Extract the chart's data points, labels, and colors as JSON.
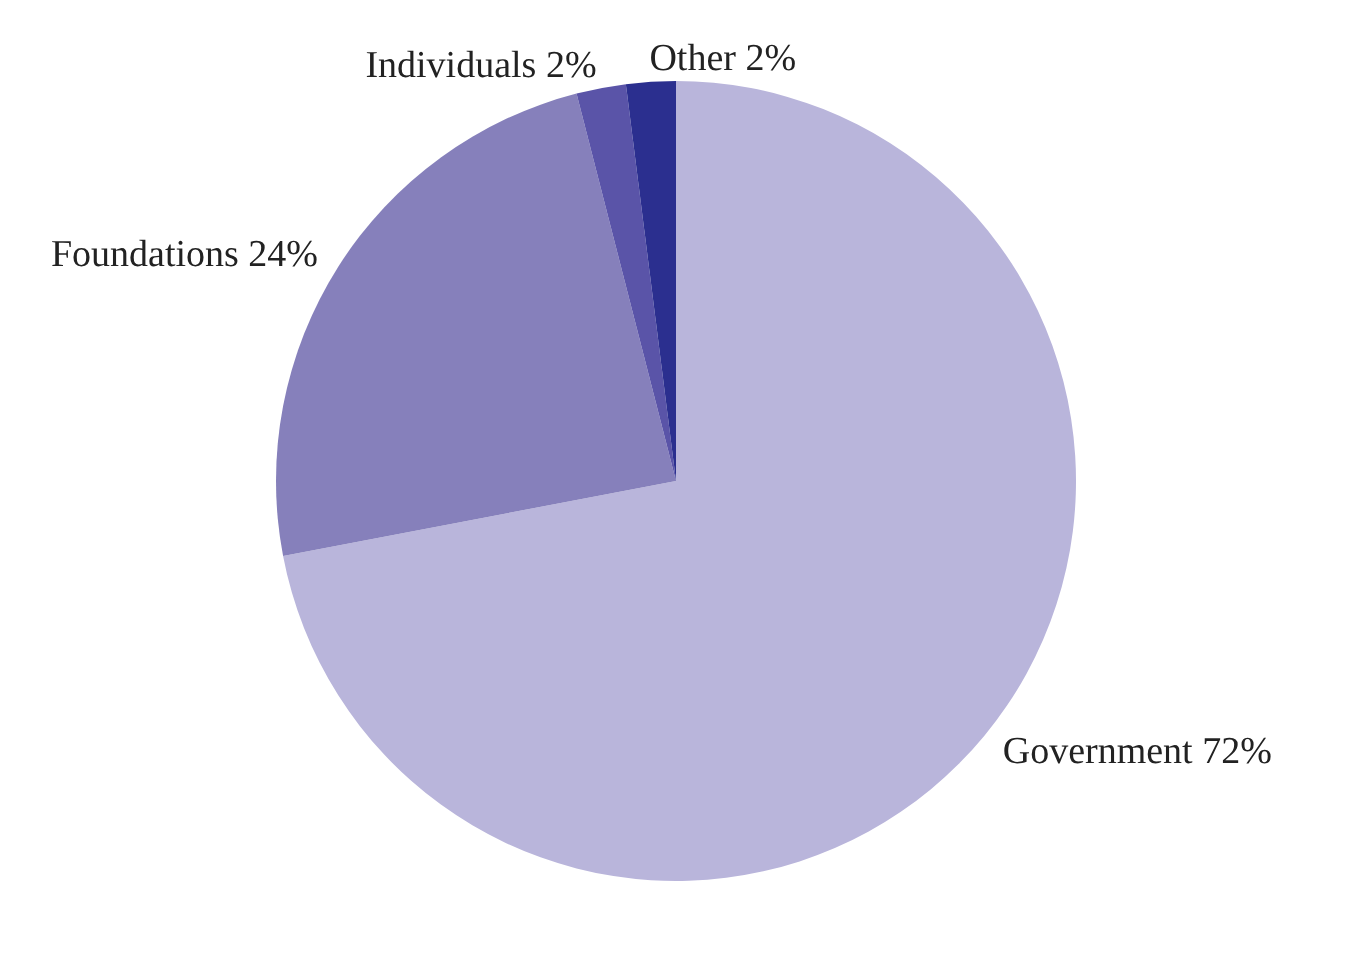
{
  "chart_data": {
    "type": "pie",
    "categories": [
      "Government",
      "Foundations",
      "Individuals",
      "Other"
    ],
    "values": [
      72,
      24,
      2,
      2
    ],
    "value_labels": [
      "72%",
      "24%",
      "2%",
      "2%"
    ],
    "colors": [
      "#b9b5db",
      "#8680bb",
      "#5a54a8",
      "#2b2f8f"
    ],
    "legend": false
  }
}
